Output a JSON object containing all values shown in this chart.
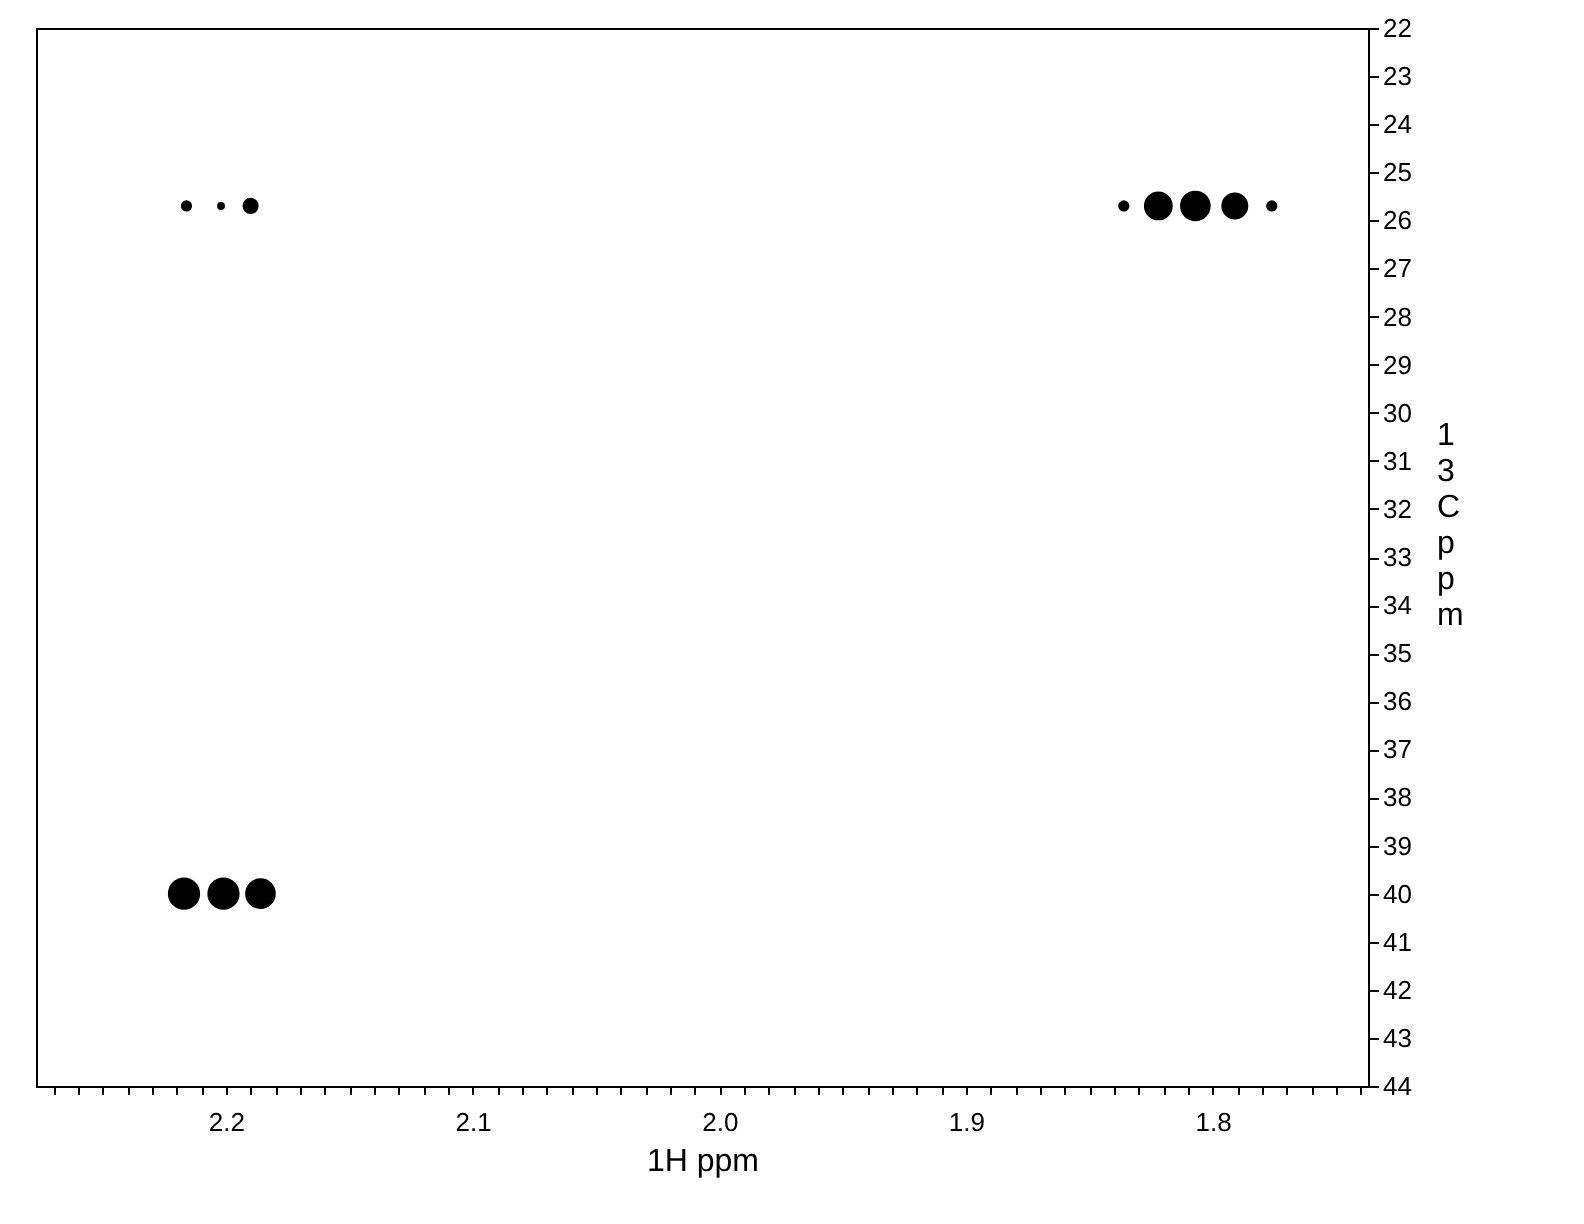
{
  "chart_data": {
    "type": "bubble",
    "xlabel": "1H ppm",
    "ylabel": "13C ppm",
    "marker": "circle",
    "legend": false,
    "grid": false,
    "xlim": [
      2.277,
      1.737
    ],
    "ylim": [
      44,
      22
    ],
    "xticks": [
      {
        "value": 2.27,
        "label": null
      },
      {
        "value": 2.26,
        "label": null
      },
      {
        "value": 2.25,
        "label": null
      },
      {
        "value": 2.24,
        "label": null
      },
      {
        "value": 2.23,
        "label": null
      },
      {
        "value": 2.22,
        "label": null
      },
      {
        "value": 2.21,
        "label": null
      },
      {
        "value": 2.2,
        "label": "2.2"
      },
      {
        "value": 2.19,
        "label": null
      },
      {
        "value": 2.18,
        "label": null
      },
      {
        "value": 2.17,
        "label": null
      },
      {
        "value": 2.16,
        "label": null
      },
      {
        "value": 2.15,
        "label": null
      },
      {
        "value": 2.14,
        "label": null
      },
      {
        "value": 2.13,
        "label": null
      },
      {
        "value": 2.12,
        "label": null
      },
      {
        "value": 2.11,
        "label": null
      },
      {
        "value": 2.1,
        "label": "2.1"
      },
      {
        "value": 2.09,
        "label": null
      },
      {
        "value": 2.08,
        "label": null
      },
      {
        "value": 2.07,
        "label": null
      },
      {
        "value": 2.06,
        "label": null
      },
      {
        "value": 2.05,
        "label": null
      },
      {
        "value": 2.04,
        "label": null
      },
      {
        "value": 2.03,
        "label": null
      },
      {
        "value": 2.02,
        "label": null
      },
      {
        "value": 2.01,
        "label": null
      },
      {
        "value": 2.0,
        "label": "2.0"
      },
      {
        "value": 1.99,
        "label": null
      },
      {
        "value": 1.98,
        "label": null
      },
      {
        "value": 1.97,
        "label": null
      },
      {
        "value": 1.96,
        "label": null
      },
      {
        "value": 1.95,
        "label": null
      },
      {
        "value": 1.94,
        "label": null
      },
      {
        "value": 1.93,
        "label": null
      },
      {
        "value": 1.92,
        "label": null
      },
      {
        "value": 1.91,
        "label": null
      },
      {
        "value": 1.9,
        "label": "1.9"
      },
      {
        "value": 1.89,
        "label": null
      },
      {
        "value": 1.88,
        "label": null
      },
      {
        "value": 1.87,
        "label": null
      },
      {
        "value": 1.86,
        "label": null
      },
      {
        "value": 1.85,
        "label": null
      },
      {
        "value": 1.84,
        "label": null
      },
      {
        "value": 1.83,
        "label": null
      },
      {
        "value": 1.82,
        "label": null
      },
      {
        "value": 1.81,
        "label": null
      },
      {
        "value": 1.8,
        "label": "1.8"
      },
      {
        "value": 1.79,
        "label": null
      },
      {
        "value": 1.78,
        "label": null
      },
      {
        "value": 1.77,
        "label": null
      },
      {
        "value": 1.76,
        "label": null
      },
      {
        "value": 1.75,
        "label": null
      },
      {
        "value": 1.74,
        "label": null
      }
    ],
    "yticks": [
      22,
      23,
      24,
      25,
      26,
      27,
      28,
      29,
      30,
      31,
      32,
      33,
      34,
      35,
      36,
      37,
      38,
      39,
      40,
      41,
      42,
      43,
      44
    ],
    "series": [
      {
        "color": "#000000",
        "x": [
          2.216,
          2.202,
          2.19,
          1.836,
          1.822,
          1.807,
          1.791,
          1.776,
          2.217,
          2.201,
          2.186
        ],
        "values": [
          25.7,
          25.7,
          25.7,
          25.7,
          25.7,
          25.7,
          25.7,
          25.7,
          40.0,
          40.0,
          40.0
        ],
        "sizes": [
          0.12,
          0.06,
          0.25,
          0.12,
          0.8,
          0.9,
          0.7,
          0.12,
          1,
          1,
          0.9
        ]
      }
    ]
  }
}
